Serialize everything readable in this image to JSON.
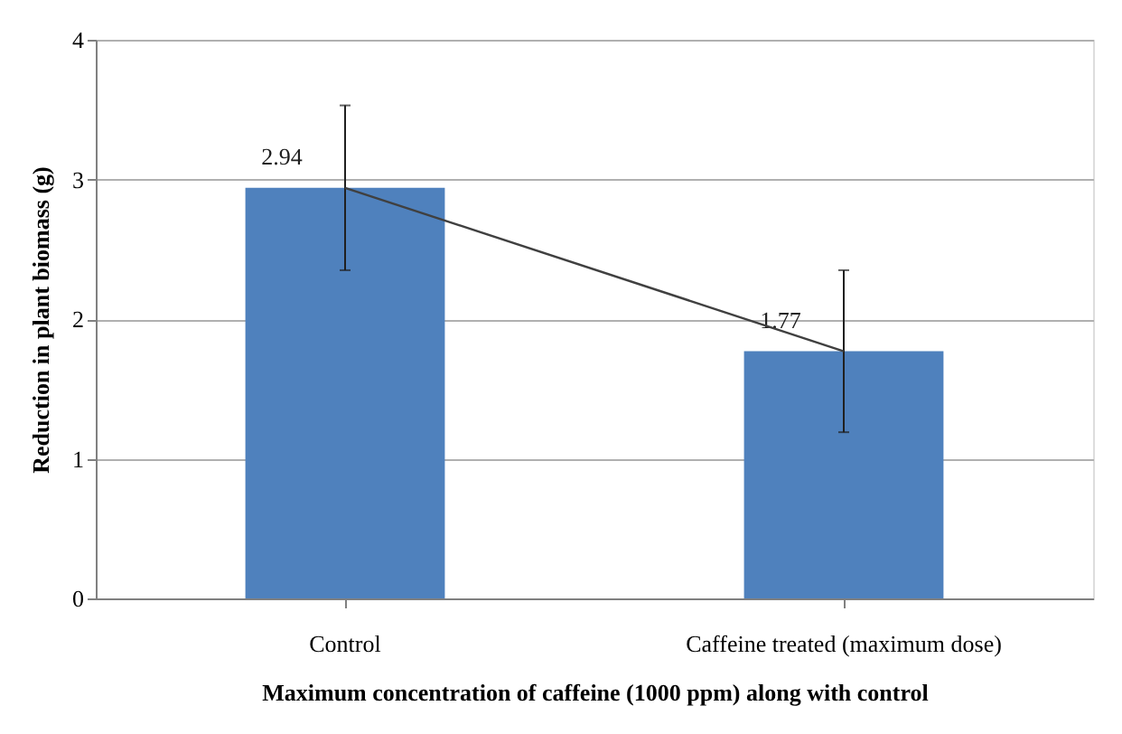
{
  "chart_data": {
    "type": "bar",
    "xlabel": "Maximum concentration of caffeine (1000 ppm) along with control",
    "ylabel": "Reduction in plant biomass (g)",
    "categories": [
      "Control",
      "Caffeine treated (maximum dose)"
    ],
    "series": [
      {
        "color": "#4f81bd",
        "values": [
          2.94,
          1.77
        ],
        "value_labels": [
          "2.94",
          "1.77"
        ],
        "errors": [
          [
            2.35,
            3.53
          ],
          [
            1.19,
            2.35
          ]
        ]
      },
      {
        "type": "line",
        "color": "#404040",
        "values": [
          2.94,
          1.77
        ]
      }
    ],
    "ylim": [
      0,
      4
    ],
    "yticks": [
      0,
      1,
      2,
      3,
      4
    ],
    "grid": "y"
  }
}
